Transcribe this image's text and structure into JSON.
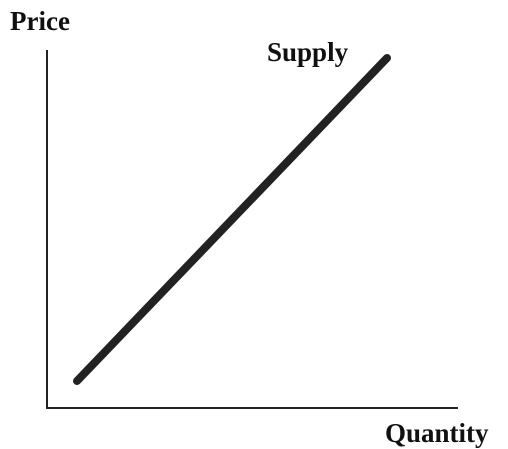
{
  "axes": {
    "y_label": "Price",
    "x_label": "Quantity"
  },
  "curve": {
    "label": "Supply"
  }
}
